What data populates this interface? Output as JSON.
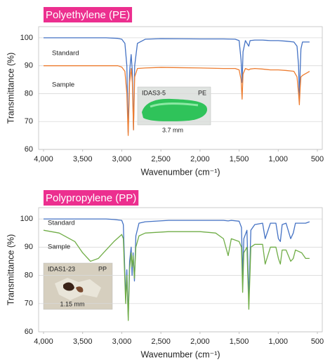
{
  "chart_data": [
    {
      "type": "line",
      "title": "Polyethylene (PE)",
      "x_label": "Wavenumber (cm⁻¹)",
      "y_label": "Transmittance (%)",
      "xlim": [
        4000,
        500
      ],
      "ylim": [
        60,
        104
      ],
      "xticks": [
        {
          "value": 4000,
          "label": "4,000"
        },
        {
          "value": 3500,
          "label": "3,500"
        },
        {
          "value": 3000,
          "label": "3,000"
        },
        {
          "value": 2500,
          "label": "2,500"
        },
        {
          "value": 2000,
          "label": "2,000"
        },
        {
          "value": 1500,
          "label": "1,500"
        },
        {
          "value": 1000,
          "label": "1,000"
        },
        500
      ],
      "yticks": [
        60,
        70,
        80,
        90,
        100
      ],
      "grid": true,
      "x": [
        4000,
        3600,
        3200,
        3050,
        3000,
        2960,
        2935,
        2918,
        2900,
        2880,
        2865,
        2850,
        2835,
        2800,
        2700,
        2500,
        2000,
        1700,
        1550,
        1500,
        1475,
        1462,
        1450,
        1420,
        1377,
        1360,
        1300,
        1200,
        1100,
        1000,
        900,
        800,
        760,
        740,
        730,
        720,
        710,
        690,
        660,
        630,
        600
      ],
      "series": [
        {
          "name": "Standard",
          "color": "#4472c4",
          "values": [
            100,
            100,
            100,
            99.8,
            99.5,
            98,
            90,
            66,
            88,
            94,
            88,
            67,
            90,
            98,
            99.5,
            99.7,
            99.6,
            99.6,
            99.5,
            99,
            92,
            84,
            95,
            99,
            97,
            99,
            99.2,
            99.2,
            99,
            99,
            98.8,
            98.5,
            97,
            90,
            78,
            88,
            96,
            98.5,
            98.5,
            98.5,
            98.5
          ]
        },
        {
          "name": "Sample",
          "color": "#ed7d31",
          "values": [
            90,
            90,
            90,
            90,
            89.5,
            88,
            80,
            65,
            84,
            89,
            84,
            67,
            86,
            89,
            89.2,
            89.4,
            89.2,
            89,
            89,
            88.5,
            85,
            78,
            87,
            89,
            88.5,
            88.8,
            89,
            88.8,
            88.5,
            88.5,
            88.3,
            88,
            86,
            80,
            76,
            82,
            86,
            86.5,
            87,
            87.5,
            88
          ]
        }
      ],
      "annotations": [
        "IDAS3-5",
        "PE",
        "3.7 mm"
      ]
    },
    {
      "type": "line",
      "title": "Polypropylene (PP)",
      "x_label": "Wavenumber (cm⁻¹)",
      "y_label": "Transmittance (%)",
      "xlim": [
        4000,
        500
      ],
      "ylim": [
        60,
        104
      ],
      "xticks": [
        {
          "value": 4000,
          "label": "4,000"
        },
        {
          "value": 3500,
          "label": "3,500"
        },
        {
          "value": 3000,
          "label": "3,000"
        },
        {
          "value": 2500,
          "label": "2,500"
        },
        {
          "value": 2000,
          "label": "2,000"
        },
        {
          "value": 1500,
          "label": "1,500"
        },
        {
          "value": 1000,
          "label": "1,000"
        },
        500
      ],
      "yticks": [
        60,
        70,
        80,
        90,
        100
      ],
      "grid": true,
      "x": [
        4000,
        3800,
        3600,
        3500,
        3400,
        3300,
        3200,
        3100,
        3000,
        2980,
        2950,
        2935,
        2917,
        2900,
        2880,
        2868,
        2855,
        2838,
        2820,
        2780,
        2700,
        2400,
        2000,
        1800,
        1700,
        1640,
        1600,
        1500,
        1470,
        1455,
        1440,
        1400,
        1376,
        1350,
        1300,
        1200,
        1167,
        1100,
        1030,
        998,
        973,
        950,
        900,
        841,
        808,
        780,
        700,
        650,
        600
      ],
      "series": [
        {
          "name": "Standard",
          "color": "#4472c4",
          "values": [
            100,
            100,
            100,
            100,
            100,
            100,
            100,
            99.8,
            99.5,
            98,
            72,
            82,
            65,
            85,
            90,
            80,
            88,
            78,
            94,
            98.5,
            99,
            99.5,
            99.5,
            99.5,
            99.5,
            99.3,
            99.5,
            99.2,
            97,
            80,
            93,
            96,
            72,
            96,
            98,
            98.5,
            93,
            98.5,
            98.5,
            93,
            92,
            98,
            98.5,
            93,
            95,
            98.5,
            98.5,
            98.5,
            99
          ]
        },
        {
          "name": "Sample",
          "color": "#70ad47",
          "values": [
            96,
            95,
            92,
            88,
            85,
            86,
            89,
            92,
            94.5,
            93,
            70,
            80,
            64,
            82,
            88,
            83,
            87,
            79,
            90,
            94,
            95,
            95.5,
            95.5,
            95,
            93,
            87,
            93,
            92,
            90,
            74,
            88,
            90,
            68,
            90,
            91,
            91,
            84,
            90,
            90,
            86,
            84,
            89,
            89,
            85,
            86,
            89,
            88,
            86,
            86
          ]
        }
      ],
      "annotations": [
        "IDAS1-23",
        "PP",
        "1.15 mm"
      ]
    }
  ]
}
